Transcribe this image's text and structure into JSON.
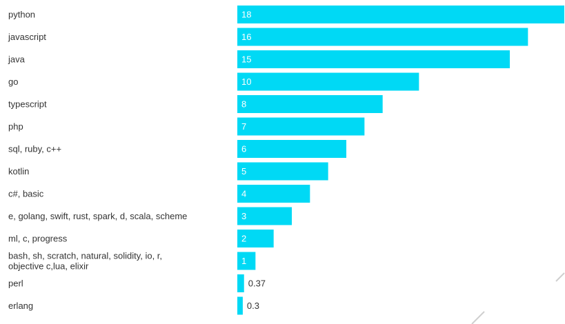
{
  "chart_data": {
    "type": "bar",
    "orientation": "horizontal",
    "categories": [
      "python",
      "javascript",
      "java",
      "go",
      "typescript",
      "php",
      "sql, ruby, c++",
      "kotlin",
      "c#, basic",
      "e, golang, swift, rust, spark, d, scala, scheme",
      "ml, c, progress",
      "bash, sh, scratch, natural, solidity, io, r, objective c,lua, elixir",
      "perl",
      "erlang"
    ],
    "values": [
      18,
      16,
      15,
      10,
      8,
      7,
      6,
      5,
      4,
      3,
      2,
      1,
      0.37,
      0.3
    ],
    "value_labels": [
      "18",
      "16",
      "15",
      "10",
      "8",
      "7",
      "6",
      "5",
      "4",
      "3",
      "2",
      "1",
      "0.37",
      "0.3"
    ],
    "title": "",
    "xlabel": "",
    "ylabel": "",
    "xlim": [
      0,
      18
    ],
    "grid": false,
    "legend": "none",
    "bar_color": "#00d9f5"
  }
}
